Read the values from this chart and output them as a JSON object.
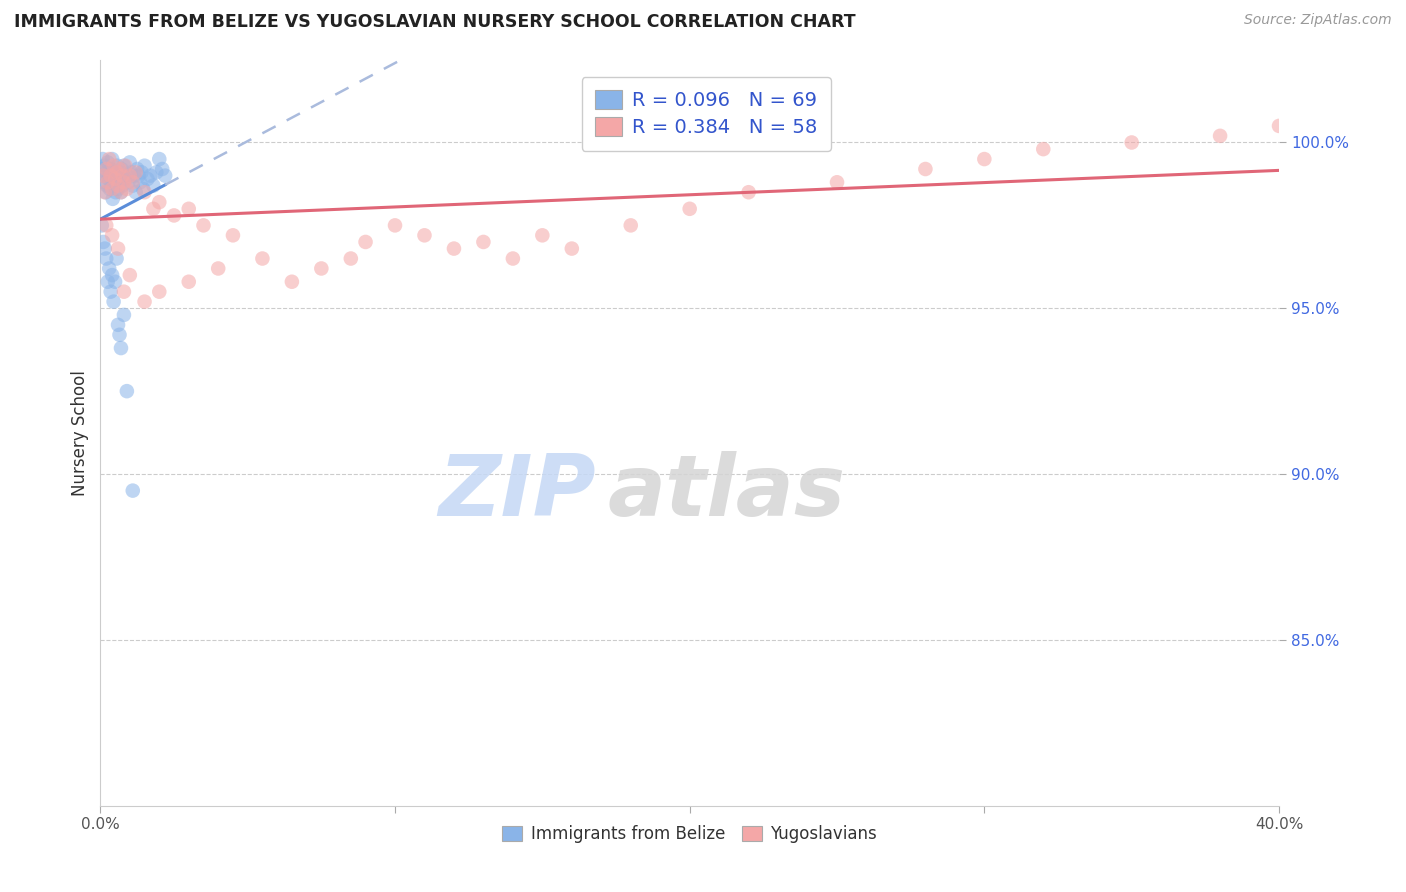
{
  "title": "IMMIGRANTS FROM BELIZE VS YUGOSLAVIAN NURSERY SCHOOL CORRELATION CHART",
  "source": "Source: ZipAtlas.com",
  "ylabel": "Nursery School",
  "x_range": [
    0.0,
    40.0
  ],
  "y_range": [
    80.0,
    102.5
  ],
  "yticks": [
    85.0,
    90.0,
    95.0,
    100.0
  ],
  "ytick_labels": [
    "85.0%",
    "90.0%",
    "95.0%",
    "100.0%"
  ],
  "xtick_positions": [
    0,
    10,
    20,
    30,
    40
  ],
  "xtick_labels": [
    "0.0%",
    "",
    "",
    "",
    "40.0%"
  ],
  "legend_label1": "R = 0.096   N = 69",
  "legend_label2": "R = 0.384   N = 58",
  "belize_color": "#8ab4e8",
  "yugoslav_color": "#f4a7a7",
  "belize_line_color": "#5b8dd9",
  "yugoslav_line_color": "#e06677",
  "belize_line_ext_color": "#b0c8e8",
  "grid_color_strong": "#cccccc",
  "grid_color_weak": "#e8e8e8",
  "watermark_zip_color": "#c5d8f5",
  "watermark_atlas_color": "#d8d8d8",
  "tick_color": "#aaaaaa",
  "spine_color": "#cccccc",
  "ytick_label_color": "#4169e1",
  "xtick_label_color": "#555555",
  "title_color": "#222222",
  "source_color": "#999999",
  "ylabel_color": "#333333",
  "belize_x": [
    0.05,
    0.08,
    0.1,
    0.12,
    0.15,
    0.18,
    0.2,
    0.22,
    0.25,
    0.28,
    0.3,
    0.32,
    0.35,
    0.38,
    0.4,
    0.42,
    0.45,
    0.48,
    0.5,
    0.52,
    0.55,
    0.58,
    0.6,
    0.62,
    0.65,
    0.68,
    0.7,
    0.72,
    0.75,
    0.78,
    0.8,
    0.85,
    0.9,
    0.95,
    1.0,
    1.05,
    1.1,
    1.15,
    1.2,
    1.25,
    1.3,
    1.35,
    1.4,
    1.45,
    1.5,
    1.6,
    1.7,
    1.8,
    1.9,
    2.0,
    2.1,
    2.2,
    0.05,
    0.1,
    0.15,
    0.2,
    0.25,
    0.3,
    0.35,
    0.4,
    0.45,
    0.5,
    0.55,
    0.6,
    0.65,
    0.7,
    0.8,
    0.9,
    1.1
  ],
  "belize_y": [
    99.2,
    99.5,
    99.0,
    98.8,
    99.3,
    98.5,
    99.1,
    98.7,
    99.4,
    98.9,
    99.0,
    98.6,
    99.2,
    98.8,
    99.5,
    98.3,
    99.0,
    98.7,
    99.1,
    98.5,
    98.9,
    99.3,
    98.6,
    99.0,
    98.8,
    99.1,
    98.5,
    99.2,
    98.7,
    99.0,
    99.3,
    98.9,
    99.0,
    98.8,
    99.4,
    99.1,
    98.7,
    99.0,
    98.5,
    99.2,
    99.0,
    98.8,
    99.1,
    98.6,
    99.3,
    98.9,
    99.0,
    98.7,
    99.1,
    99.5,
    99.2,
    99.0,
    97.5,
    97.0,
    96.8,
    96.5,
    95.8,
    96.2,
    95.5,
    96.0,
    95.2,
    95.8,
    96.5,
    94.5,
    94.2,
    93.8,
    94.8,
    92.5,
    89.5
  ],
  "yugoslav_x": [
    0.1,
    0.15,
    0.2,
    0.25,
    0.3,
    0.35,
    0.4,
    0.45,
    0.5,
    0.55,
    0.6,
    0.65,
    0.7,
    0.75,
    0.8,
    0.85,
    0.9,
    1.0,
    1.1,
    1.2,
    1.5,
    1.8,
    2.0,
    2.5,
    3.0,
    3.5,
    4.5,
    5.5,
    6.5,
    7.5,
    8.5,
    9.0,
    10.0,
    11.0,
    12.0,
    13.0,
    14.0,
    15.0,
    16.0,
    18.0,
    20.0,
    22.0,
    25.0,
    28.0,
    30.0,
    32.0,
    35.0,
    38.0,
    40.0,
    0.2,
    0.4,
    0.6,
    0.8,
    1.0,
    1.5,
    2.0,
    3.0,
    4.0
  ],
  "yugoslav_y": [
    99.0,
    98.5,
    99.2,
    98.8,
    99.5,
    99.0,
    98.6,
    99.3,
    98.9,
    99.1,
    98.7,
    99.2,
    98.5,
    99.0,
    98.8,
    99.3,
    98.6,
    99.0,
    98.8,
    99.1,
    98.5,
    98.0,
    98.2,
    97.8,
    98.0,
    97.5,
    97.2,
    96.5,
    95.8,
    96.2,
    96.5,
    97.0,
    97.5,
    97.2,
    96.8,
    97.0,
    96.5,
    97.2,
    96.8,
    97.5,
    98.0,
    98.5,
    98.8,
    99.2,
    99.5,
    99.8,
    100.0,
    100.2,
    100.5,
    97.5,
    97.2,
    96.8,
    95.5,
    96.0,
    95.2,
    95.5,
    95.8,
    96.2
  ]
}
